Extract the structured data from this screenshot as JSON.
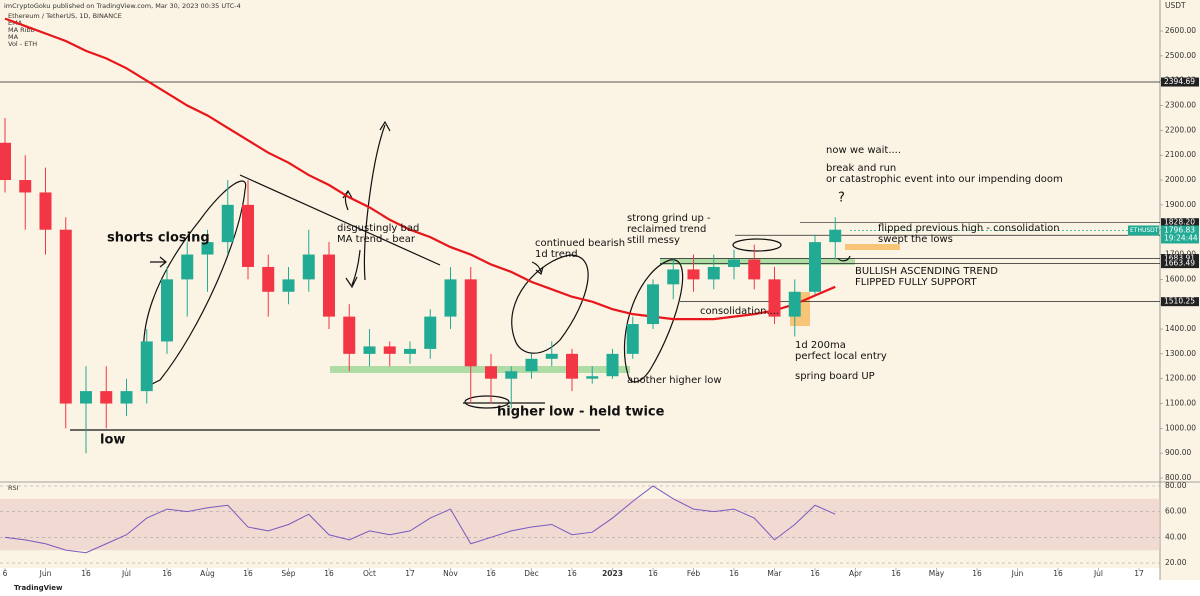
{
  "chart_data": {
    "type": "candlestick",
    "header": "imCryptoGoku published on TradingView.com, Mar 30, 2023 00:35 UTC-4",
    "title": "Ethereum / TetherUS, 1D, BINANCE",
    "indicators": [
      "EMA",
      "MA Ribb",
      "MA",
      "Vol - ETH"
    ],
    "y_axis_unit": "USDT",
    "footer": "TradingView",
    "up_color": "#22ab94",
    "down_color": "#f23645",
    "categories": [
      "6",
      null,
      "Jun",
      null,
      "16",
      null,
      "Jul",
      null,
      "16",
      null,
      "Aug",
      null,
      "16",
      null,
      "Sep",
      null,
      "16",
      null,
      "Oct",
      null,
      "17",
      null,
      "Nov",
      null,
      "16",
      null,
      "Dec",
      null,
      "16",
      null,
      "2023",
      null,
      "16",
      null,
      "Feb",
      null,
      "16",
      null,
      "Mar",
      null,
      "16",
      null,
      "Apr",
      null,
      "16",
      null,
      "May",
      null,
      "16",
      null,
      "Jun",
      null,
      "16",
      null,
      "Jul",
      null,
      "17"
    ],
    "open": [
      2150,
      2000,
      1950,
      1800,
      1100,
      1150,
      1100,
      1150,
      1350,
      1600,
      1700,
      1750,
      1900,
      1650,
      1550,
      1600,
      1700,
      1450,
      1300,
      1330,
      1300,
      1320,
      1450,
      1600,
      1250,
      1200,
      1230,
      1280,
      1300,
      1200,
      1210,
      1300,
      1420,
      1580,
      1640,
      1600,
      1650,
      1680,
      1600,
      1450,
      1550,
      1750,
      null,
      null,
      null,
      null,
      null,
      null,
      null,
      null,
      null,
      null,
      null,
      null,
      null,
      null,
      null
    ],
    "high": [
      2250,
      2100,
      2050,
      1850,
      1250,
      1250,
      1200,
      1400,
      1650,
      1750,
      1800,
      2000,
      2000,
      1700,
      1650,
      1800,
      1750,
      1500,
      1400,
      1350,
      1350,
      1480,
      1650,
      1650,
      1300,
      1250,
      1300,
      1350,
      1320,
      1250,
      1320,
      1450,
      1600,
      1680,
      1700,
      1700,
      1720,
      1740,
      1650,
      1600,
      1780,
      1850,
      null,
      null,
      null,
      null,
      null,
      null,
      null,
      null,
      null,
      null,
      null,
      null,
      null,
      null,
      null
    ],
    "low": [
      1950,
      1800,
      1700,
      1000,
      900,
      1000,
      1050,
      1100,
      1300,
      1450,
      1550,
      1700,
      1600,
      1450,
      1500,
      1550,
      1400,
      1230,
      1250,
      1250,
      1260,
      1280,
      1400,
      1100,
      1100,
      1080,
      1200,
      1250,
      1150,
      1180,
      1200,
      1280,
      1400,
      1520,
      1550,
      1560,
      1600,
      1560,
      1420,
      1370,
      1540,
      1680,
      null,
      null,
      null,
      null,
      null,
      null,
      null,
      null,
      null,
      null,
      null,
      null,
      null,
      null,
      null
    ],
    "close": [
      2000,
      1950,
      1800,
      1100,
      1150,
      1100,
      1150,
      1350,
      1600,
      1700,
      1750,
      1900,
      1650,
      1550,
      1600,
      1700,
      1450,
      1300,
      1330,
      1300,
      1320,
      1450,
      1600,
      1250,
      1200,
      1230,
      1280,
      1300,
      1200,
      1210,
      1300,
      1420,
      1580,
      1640,
      1600,
      1650,
      1680,
      1600,
      1450,
      1550,
      1750,
      1800,
      null,
      null,
      null,
      null,
      null,
      null,
      null,
      null,
      null,
      null,
      null,
      null,
      null,
      null,
      null
    ],
    "moving_average": {
      "color": "#e8161b",
      "values": [
        2650,
        2620,
        2590,
        2560,
        2520,
        2490,
        2450,
        2400,
        2350,
        2300,
        2260,
        2210,
        2160,
        2110,
        2070,
        2020,
        1980,
        1930,
        1890,
        1840,
        1800,
        1770,
        1730,
        1700,
        1660,
        1630,
        1590,
        1560,
        1530,
        1510,
        1480,
        1460,
        1450,
        1440,
        1440,
        1440,
        1450,
        1460,
        1475,
        1500,
        1535,
        1570,
        null,
        null,
        null,
        null,
        null,
        null,
        null,
        null,
        null,
        null,
        null,
        null,
        null,
        null,
        null
      ]
    },
    "ylim": [
      784,
      2725
    ],
    "yticks": [
      {
        "value": 800,
        "label": "800.00"
      },
      {
        "value": 900,
        "label": "900.00"
      },
      {
        "value": 1000,
        "label": "1000.00"
      },
      {
        "value": 1100,
        "label": "1100.00"
      },
      {
        "value": 1200,
        "label": "1200.00"
      },
      {
        "value": 1300,
        "label": "1300.00"
      },
      {
        "value": 1400,
        "label": "1400.00"
      },
      {
        "value": 1500,
        "label": "1500.00"
      },
      {
        "value": 1600,
        "label": "1600.00"
      },
      {
        "value": 1700,
        "label": "1700.00"
      },
      {
        "value": 1800,
        "label": "1800.00"
      },
      {
        "value": 1900,
        "label": "1900.00"
      },
      {
        "value": 2000,
        "label": "2000.00"
      },
      {
        "value": 2100,
        "label": "2100.00"
      },
      {
        "value": 2200,
        "label": "2200.00"
      },
      {
        "value": 2300,
        "label": "2300.00"
      },
      {
        "value": 2400,
        "label": "2400.00"
      },
      {
        "value": 2500,
        "label": "2500.00"
      },
      {
        "value": 2600,
        "label": "2600.00"
      }
    ],
    "levels": [
      2394.69,
      {
        "value": 1828.2,
        "label": "1828.20"
      },
      1777.65,
      1683.91,
      1663.49,
      1510.25
    ],
    "last_price": {
      "symbol": "ETHUSDT",
      "value": 1796.83,
      "countdown": "19:24:44"
    },
    "rsi": {
      "title": "RSI",
      "color": "#7e57c2",
      "values": [
        40,
        38,
        35,
        30,
        28,
        35,
        42,
        55,
        62,
        60,
        63,
        65,
        48,
        45,
        50,
        58,
        42,
        38,
        45,
        42,
        45,
        55,
        62,
        35,
        40,
        45,
        48,
        50,
        42,
        44,
        55,
        68,
        80,
        70,
        62,
        60,
        62,
        55,
        38,
        50,
        65,
        58,
        null,
        null,
        null,
        null,
        null,
        null,
        null,
        null,
        null,
        null,
        null,
        null,
        null,
        null,
        null
      ],
      "ylim": [
        16.1,
        83.1
      ],
      "yticks": [
        {
          "value": 20,
          "label": "20.00"
        },
        {
          "value": 40,
          "label": "40.00"
        },
        {
          "value": 60,
          "label": "60.00"
        },
        {
          "value": 80,
          "label": "80.00"
        }
      ],
      "band": [
        30,
        70
      ]
    },
    "annotations": [
      [
        "low"
      ],
      [
        "shorts closing"
      ],
      [
        "disgustingly bad",
        "MA trend - bear"
      ],
      [
        "continued bearish",
        "1d trend"
      ],
      [
        "strong grind up -",
        "reclaimed trend",
        "still messy"
      ],
      [
        "now we wait...."
      ],
      [
        "break and run",
        "or catastrophic event into our impending doom"
      ],
      [
        "?"
      ],
      [
        "flipped previous high - consolidation",
        "swept the lows"
      ],
      [
        "BULLISH ASCENDING TREND",
        "FLIPPED FULLY SUPPORT"
      ],
      [
        "consolidation...."
      ],
      [
        "1d 200ma",
        "perfect local entry"
      ],
      [
        "spring board UP"
      ],
      [
        "another higher low"
      ],
      [
        "higher low - held twice"
      ]
    ]
  }
}
